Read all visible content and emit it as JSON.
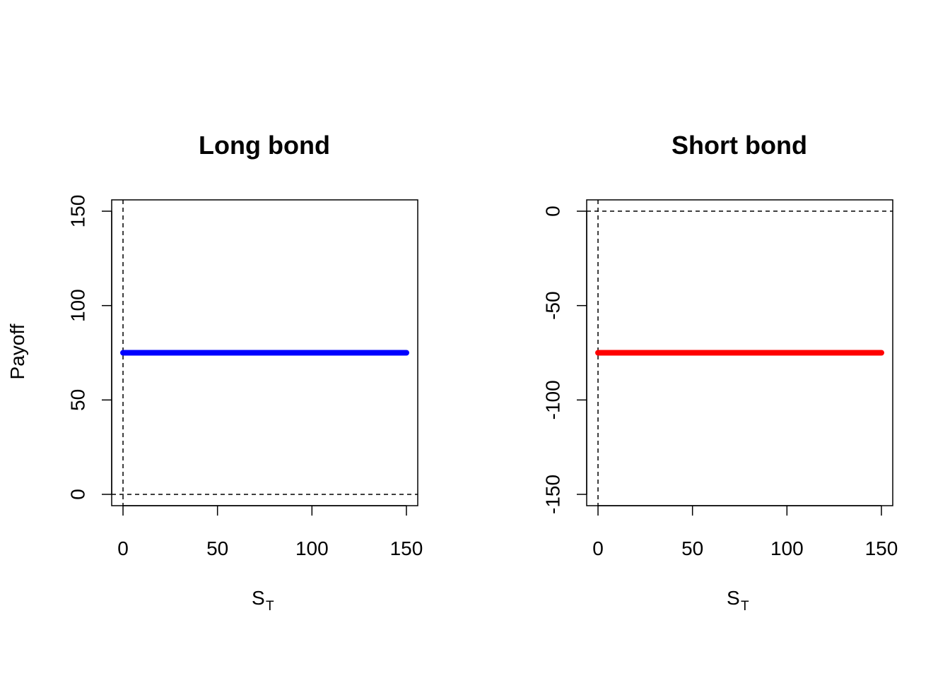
{
  "figure": {
    "ylabel": "Payoff"
  },
  "chart_data": [
    {
      "type": "line",
      "title": "Long bond",
      "xlabel": "S",
      "xlabel_sub": "T",
      "ylabel": "Payoff",
      "xlim": [
        0,
        150
      ],
      "ylim": [
        0,
        150
      ],
      "xticks": [
        0,
        50,
        100,
        150
      ],
      "yticks": [
        0,
        50,
        100,
        150
      ],
      "xtick_labels": [
        "0",
        "50",
        "100",
        "150"
      ],
      "ytick_labels": [
        "0",
        "50",
        "100",
        "150"
      ],
      "reference_lines": {
        "vertical_x": 0,
        "horizontal_y": 0,
        "style": "dashed"
      },
      "series": [
        {
          "color": "#0000ff",
          "x": [
            0,
            150
          ],
          "y": [
            75,
            75
          ]
        }
      ],
      "grid": false
    },
    {
      "type": "line",
      "title": "Short bond",
      "xlabel": "S",
      "xlabel_sub": "T",
      "ylabel": "",
      "xlim": [
        0,
        150
      ],
      "ylim": [
        -150,
        0
      ],
      "xticks": [
        0,
        50,
        100,
        150
      ],
      "yticks": [
        -150,
        -100,
        -50,
        0
      ],
      "xtick_labels": [
        "0",
        "50",
        "100",
        "150"
      ],
      "ytick_labels": [
        "-150",
        "-100",
        "-50",
        "0"
      ],
      "reference_lines": {
        "vertical_x": 0,
        "horizontal_y": 0,
        "style": "dashed"
      },
      "series": [
        {
          "color": "#ff0000",
          "x": [
            0,
            150
          ],
          "y": [
            -75,
            -75
          ]
        }
      ],
      "grid": false
    }
  ]
}
